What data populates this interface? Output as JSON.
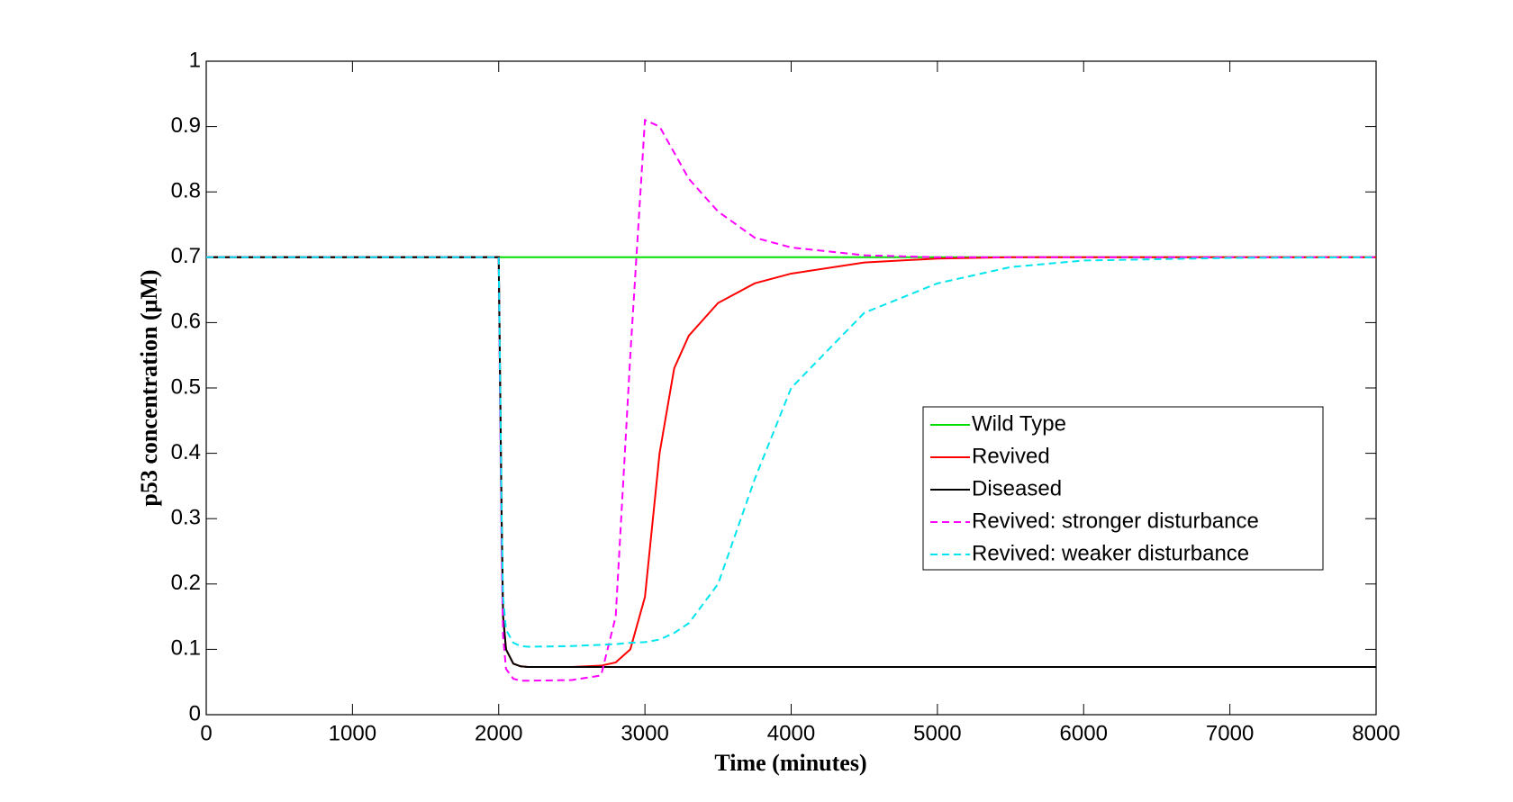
{
  "chart_data": {
    "type": "line",
    "xlabel": "Time (minutes)",
    "ylabel": "p53 concentration (μM)",
    "xlim": [
      0,
      8000
    ],
    "ylim": [
      0,
      1
    ],
    "xticks": [
      0,
      1000,
      2000,
      3000,
      4000,
      5000,
      6000,
      7000,
      8000
    ],
    "yticks": [
      0,
      0.1,
      0.2,
      0.3,
      0.4,
      0.5,
      0.6,
      0.7,
      0.8,
      0.9,
      1
    ],
    "legend": "right",
    "x": [
      0,
      2000,
      2010,
      2020,
      2030,
      2050,
      2100,
      2150,
      2200,
      2500,
      2700,
      2800,
      2900,
      3000,
      3100,
      3200,
      3300,
      3500,
      3750,
      4000,
      4500,
      5000,
      5500,
      6000,
      7000,
      8000
    ],
    "series": [
      {
        "name": "Wild Type",
        "color": "#00e000",
        "style": "solid",
        "values": [
          0.7,
          0.7,
          0.7,
          0.7,
          0.7,
          0.7,
          0.7,
          0.7,
          0.7,
          0.7,
          0.7,
          0.7,
          0.7,
          0.7,
          0.7,
          0.7,
          0.7,
          0.7,
          0.7,
          0.7,
          0.7,
          0.7,
          0.7,
          0.7,
          0.7,
          0.7
        ]
      },
      {
        "name": "Revived",
        "color": "#ff0000",
        "style": "solid",
        "values": [
          0.7,
          0.7,
          0.5,
          0.3,
          0.15,
          0.1,
          0.078,
          0.074,
          0.073,
          0.073,
          0.075,
          0.08,
          0.1,
          0.18,
          0.4,
          0.53,
          0.58,
          0.63,
          0.66,
          0.675,
          0.692,
          0.698,
          0.7,
          0.7,
          0.7,
          0.7
        ]
      },
      {
        "name": "Diseased",
        "color": "#000000",
        "style": "solid",
        "values": [
          0.7,
          0.7,
          0.5,
          0.3,
          0.15,
          0.1,
          0.078,
          0.074,
          0.073,
          0.073,
          0.073,
          0.073,
          0.073,
          0.073,
          0.073,
          0.073,
          0.073,
          0.073,
          0.073,
          0.073,
          0.073,
          0.073,
          0.073,
          0.073,
          0.073,
          0.073
        ]
      },
      {
        "name": "Revived: stronger disturbance",
        "color": "#ff00ff",
        "style": "dashed",
        "values": [
          0.7,
          0.7,
          0.45,
          0.25,
          0.12,
          0.07,
          0.055,
          0.052,
          0.052,
          0.053,
          0.06,
          0.15,
          0.55,
          0.91,
          0.9,
          0.86,
          0.82,
          0.77,
          0.73,
          0.715,
          0.703,
          0.7,
          0.7,
          0.7,
          0.7,
          0.7
        ]
      },
      {
        "name": "Revived: weaker disturbance",
        "color": "#00e5ee",
        "style": "dashed",
        "values": [
          0.7,
          0.7,
          0.5,
          0.3,
          0.18,
          0.13,
          0.11,
          0.105,
          0.104,
          0.105,
          0.107,
          0.108,
          0.11,
          0.111,
          0.115,
          0.125,
          0.14,
          0.2,
          0.36,
          0.5,
          0.615,
          0.66,
          0.685,
          0.695,
          0.699,
          0.7
        ]
      }
    ]
  }
}
